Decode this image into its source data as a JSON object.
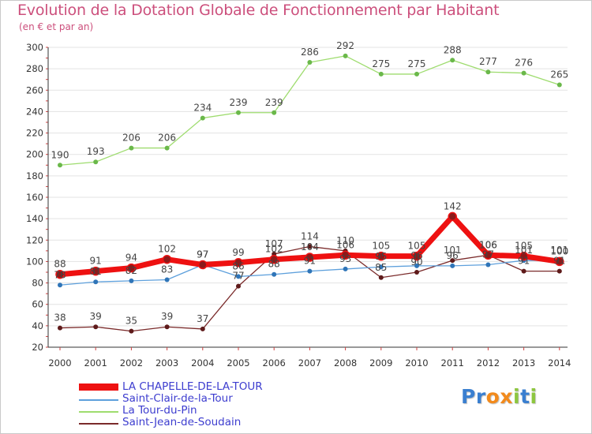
{
  "header": {
    "title": "Evolution de la Dotation Globale de Fonctionnement par Habitant",
    "subtitle": "(en € et par an)"
  },
  "logo": {
    "text": "Proxiti",
    "letters": [
      "P",
      "r",
      "o",
      "x",
      "i",
      "t",
      "i"
    ],
    "colors": [
      "#3a7fd0",
      "#3a7fd0",
      "#f28a1c",
      "#f28a1c",
      "#8dc63f",
      "#3a7fd0",
      "#8dc63f"
    ]
  },
  "chart_data": {
    "type": "line",
    "title": "Evolution de la Dotation Globale de Fonctionnement par Habitant",
    "subtitle": "(en € et par an)",
    "xlabel": "",
    "ylabel": "",
    "x": [
      "2000",
      "2001",
      "2002",
      "2003",
      "2004",
      "2005",
      "2006",
      "2007",
      "2008",
      "2009",
      "2010",
      "2011",
      "2012",
      "2013",
      "2014"
    ],
    "ylim": [
      20,
      300
    ],
    "yticks": [
      20,
      40,
      60,
      80,
      100,
      120,
      140,
      160,
      180,
      200,
      220,
      240,
      260,
      280,
      300
    ],
    "grid": "horizontal",
    "legend_position": "bottom-left",
    "series": [
      {
        "name": "LA CHAPELLE-DE-LA-TOUR",
        "color": "#ee1111",
        "marker_color": "#8b1a1a",
        "line_width": 7,
        "values": [
          88,
          91,
          94,
          102,
          97,
          99,
          102,
          104,
          106,
          105,
          105,
          142,
          106,
          105,
          100
        ],
        "labels": [
          "88",
          "91",
          "94",
          "102",
          "97",
          "99",
          "102",
          "104",
          "106",
          "105",
          "105",
          "142",
          "106",
          "105",
          "100"
        ]
      },
      {
        "name": "Saint-Clair-de-la-Tour",
        "color": "#5ea0dc",
        "marker_color": "#2f75b8",
        "line_width": 1.3,
        "values": [
          78,
          81,
          82,
          83,
          97,
          86,
          88,
          91,
          93,
          95,
          96,
          96,
          97,
          101,
          101
        ],
        "labels": [
          "78",
          "81",
          "82",
          "83",
          "97",
          "86",
          "88",
          "91",
          "93",
          "95",
          "96",
          "96",
          "97",
          "101",
          "101"
        ]
      },
      {
        "name": "La Tour-du-Pin",
        "color": "#9edc6e",
        "marker_color": "#6ab84a",
        "line_width": 1.3,
        "values": [
          190,
          193,
          206,
          206,
          234,
          239,
          239,
          286,
          292,
          275,
          275,
          288,
          277,
          276,
          265
        ],
        "labels": [
          "190",
          "193",
          "206",
          "206",
          "234",
          "239",
          "239",
          "286",
          "292",
          "275",
          "275",
          "288",
          "277",
          "276",
          "265"
        ]
      },
      {
        "name": "Saint-Jean-de-Soudain",
        "color": "#7a2a2a",
        "marker_color": "#5e1a1a",
        "line_width": 1.3,
        "values": [
          38,
          39,
          35,
          39,
          37,
          77,
          107,
          114,
          110,
          85,
          90,
          101,
          106,
          91,
          91
        ],
        "labels": [
          "38",
          "39",
          "35",
          "39",
          "37",
          "77",
          "107",
          "114",
          "110",
          "85",
          "90",
          "101",
          "106",
          "91",
          "91"
        ]
      }
    ]
  }
}
